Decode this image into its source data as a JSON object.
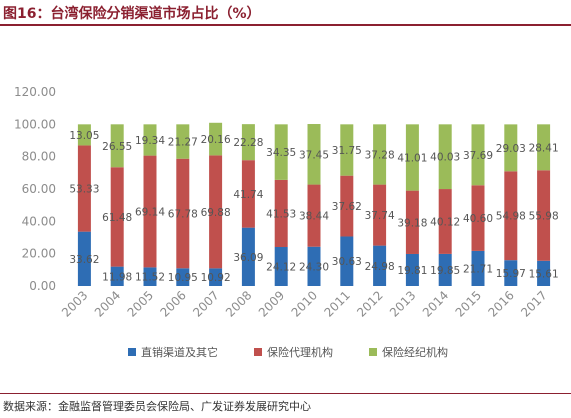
{
  "page": {
    "title": "图16：台湾保险分销渠道市场占比（%）",
    "source": "数据来源：金融监督管理委员会保险局、广发证券发展研究中心"
  },
  "colors": {
    "brand": "#8b2030",
    "series": [
      "#2e6db4",
      "#c0504d",
      "#9bbb59"
    ]
  },
  "chart_data": {
    "type": "bar",
    "stacked": true,
    "title": "",
    "xlabel": "",
    "ylabel": "",
    "ylim": [
      0,
      120
    ],
    "yticks": [
      "0.00",
      "20.00",
      "40.00",
      "60.00",
      "80.00",
      "100.00",
      "120.00"
    ],
    "grid": false,
    "legend_position": "bottom",
    "categories": [
      "2003",
      "2004",
      "2005",
      "2006",
      "2007",
      "2008",
      "2009",
      "2010",
      "2011",
      "2012",
      "2013",
      "2014",
      "2015",
      "2016",
      "2017"
    ],
    "series": [
      {
        "name": "直销渠道及其它",
        "values": [
          33.62,
          11.98,
          11.52,
          10.95,
          10.92,
          36.09,
          24.12,
          24.3,
          30.63,
          24.98,
          19.81,
          19.85,
          21.71,
          15.97,
          15.61
        ],
        "labels": [
          "33.62",
          "11.98",
          "11.52",
          "10.95",
          "10.92",
          "36.09",
          "24.12",
          "24.30",
          "30.63",
          "24.98",
          "19.81",
          "19.85",
          "21.71",
          "15.97",
          "15.61"
        ]
      },
      {
        "name": "保险代理机构",
        "values": [
          53.33,
          61.48,
          69.14,
          67.78,
          69.88,
          41.74,
          41.53,
          38.44,
          37.62,
          37.74,
          39.18,
          40.12,
          40.6,
          54.98,
          55.98
        ],
        "labels": [
          "53.33",
          "61.48",
          "69.14",
          "67.78",
          "69.88",
          "41.74",
          "41.53",
          "38.44",
          "37.62",
          "37.74",
          "39.18",
          "40.12",
          "40.60",
          "54.98",
          "55.98"
        ]
      },
      {
        "name": "保险经纪机构",
        "values": [
          13.05,
          26.55,
          19.34,
          21.27,
          20.16,
          22.28,
          34.35,
          37.45,
          31.75,
          37.28,
          41.01,
          40.03,
          37.69,
          29.03,
          28.41
        ],
        "labels": [
          "13.05",
          "26.55",
          "19.34",
          "21.27",
          "20.16",
          "22.28",
          "34.35",
          "37.45",
          "31.75",
          "37.28",
          "41.01",
          "40.03",
          "37.69",
          "29.03",
          "28.41"
        ]
      }
    ]
  }
}
